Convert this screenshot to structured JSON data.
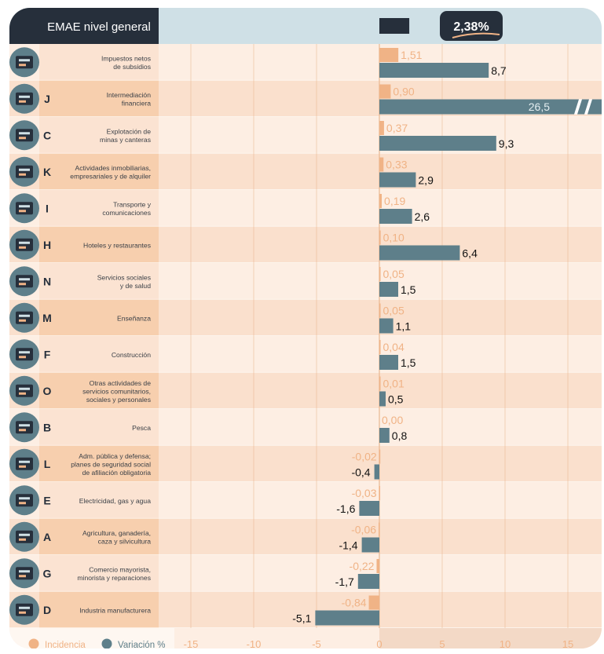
{
  "header": {
    "title": "EMAE nivel general",
    "total": "2,38%"
  },
  "legend": {
    "incidencia": "Incidencia",
    "variacion": "Variación %"
  },
  "colors": {
    "incidencia": "#f0b386",
    "variacion": "#5e7f8a",
    "dark": "#262f3b",
    "header_bg": "#cfe0e6",
    "row_a": "#fdeee3",
    "row_b": "#fae0cd",
    "label_a": "#fbe3d2",
    "label_b": "#f7cfae",
    "grid": "#e8b891"
  },
  "chart_data": {
    "type": "bar",
    "orientation": "horizontal",
    "xlim": [
      -20,
      17.5
    ],
    "x_ticks": [
      "-15",
      "-10",
      "-5",
      "0",
      "5",
      "10",
      "15"
    ],
    "x_tick_values": [
      -15,
      -10,
      -5,
      0,
      5,
      10,
      15
    ],
    "header_bar_value": 2.38,
    "broken_axis_note": "J variation bar truncated at right edge",
    "categories": [
      {
        "letter": "",
        "name": "Impuestos netos\nde subsidios",
        "icon": "tax-icon",
        "incidencia": 1.51,
        "incidencia_label": "1,51",
        "variacion": 8.7,
        "variacion_label": "8,7"
      },
      {
        "letter": "J",
        "name": "Intermediación\nfinanciera",
        "icon": "bank-icon",
        "incidencia": 0.9,
        "incidencia_label": "0,90",
        "variacion": 26.5,
        "variacion_label": "26,5"
      },
      {
        "letter": "C",
        "name": "Explotación de\nminas y canteras",
        "icon": "oil-pump-icon",
        "incidencia": 0.37,
        "incidencia_label": "0,37",
        "variacion": 9.3,
        "variacion_label": "9,3"
      },
      {
        "letter": "K",
        "name": "Actividades inmobiliarias,\nempresariales y de alquiler",
        "icon": "real-estate-icon",
        "incidencia": 0.33,
        "incidencia_label": "0,33",
        "variacion": 2.9,
        "variacion_label": "2,9"
      },
      {
        "letter": "I",
        "name": "Transporte y\ncomunicaciones",
        "icon": "transport-icon",
        "incidencia": 0.19,
        "incidencia_label": "0,19",
        "variacion": 2.6,
        "variacion_label": "2,6"
      },
      {
        "letter": "H",
        "name": "Hoteles y restaurantes",
        "icon": "hotel-icon",
        "incidencia": 0.1,
        "incidencia_label": "0,10",
        "variacion": 6.4,
        "variacion_label": "6,4"
      },
      {
        "letter": "N",
        "name": "Servicios sociales\ny de salud",
        "icon": "health-icon",
        "incidencia": 0.05,
        "incidencia_label": "0,05",
        "variacion": 1.5,
        "variacion_label": "1,5"
      },
      {
        "letter": "M",
        "name": "Enseñanza",
        "icon": "education-icon",
        "incidencia": 0.05,
        "incidencia_label": "0,05",
        "variacion": 1.1,
        "variacion_label": "1,1"
      },
      {
        "letter": "F",
        "name": "Construcción",
        "icon": "construction-icon",
        "incidencia": 0.04,
        "incidencia_label": "0,04",
        "variacion": 1.5,
        "variacion_label": "1,5"
      },
      {
        "letter": "O",
        "name": "Otras actividades de\nservicios comunitarios,\nsociales y personales",
        "icon": "community-icon",
        "incidencia": 0.01,
        "incidencia_label": "0,01",
        "variacion": 0.5,
        "variacion_label": "0,5"
      },
      {
        "letter": "B",
        "name": "Pesca",
        "icon": "fishing-icon",
        "incidencia": 0.0,
        "incidencia_label": "0,00",
        "variacion": 0.8,
        "variacion_label": "0,8"
      },
      {
        "letter": "L",
        "name": "Adm. pública y defensa;\nplanes de seguridad social\nde afiliación obligatoria",
        "icon": "government-icon",
        "incidencia": -0.02,
        "incidencia_label": "-0,02",
        "variacion": -0.4,
        "variacion_label": "-0,4"
      },
      {
        "letter": "E",
        "name": "Electricidad, gas y agua",
        "icon": "utilities-icon",
        "incidencia": -0.03,
        "incidencia_label": "-0,03",
        "variacion": -1.6,
        "variacion_label": "-1,6"
      },
      {
        "letter": "A",
        "name": "Agricultura, ganadería,\ncaza y silvicultura",
        "icon": "agriculture-icon",
        "incidencia": -0.06,
        "incidencia_label": "-0,06",
        "variacion": -1.4,
        "variacion_label": "-1,4"
      },
      {
        "letter": "G",
        "name": "Comercio mayorista,\nminorista y reparaciones",
        "icon": "commerce-icon",
        "incidencia": -0.22,
        "incidencia_label": "-0,22",
        "variacion": -1.7,
        "variacion_label": "-1,7"
      },
      {
        "letter": "D",
        "name": "Industria manufacturera",
        "icon": "industry-icon",
        "incidencia": -0.84,
        "incidencia_label": "-0,84",
        "variacion": -5.1,
        "variacion_label": "-5,1"
      }
    ]
  }
}
